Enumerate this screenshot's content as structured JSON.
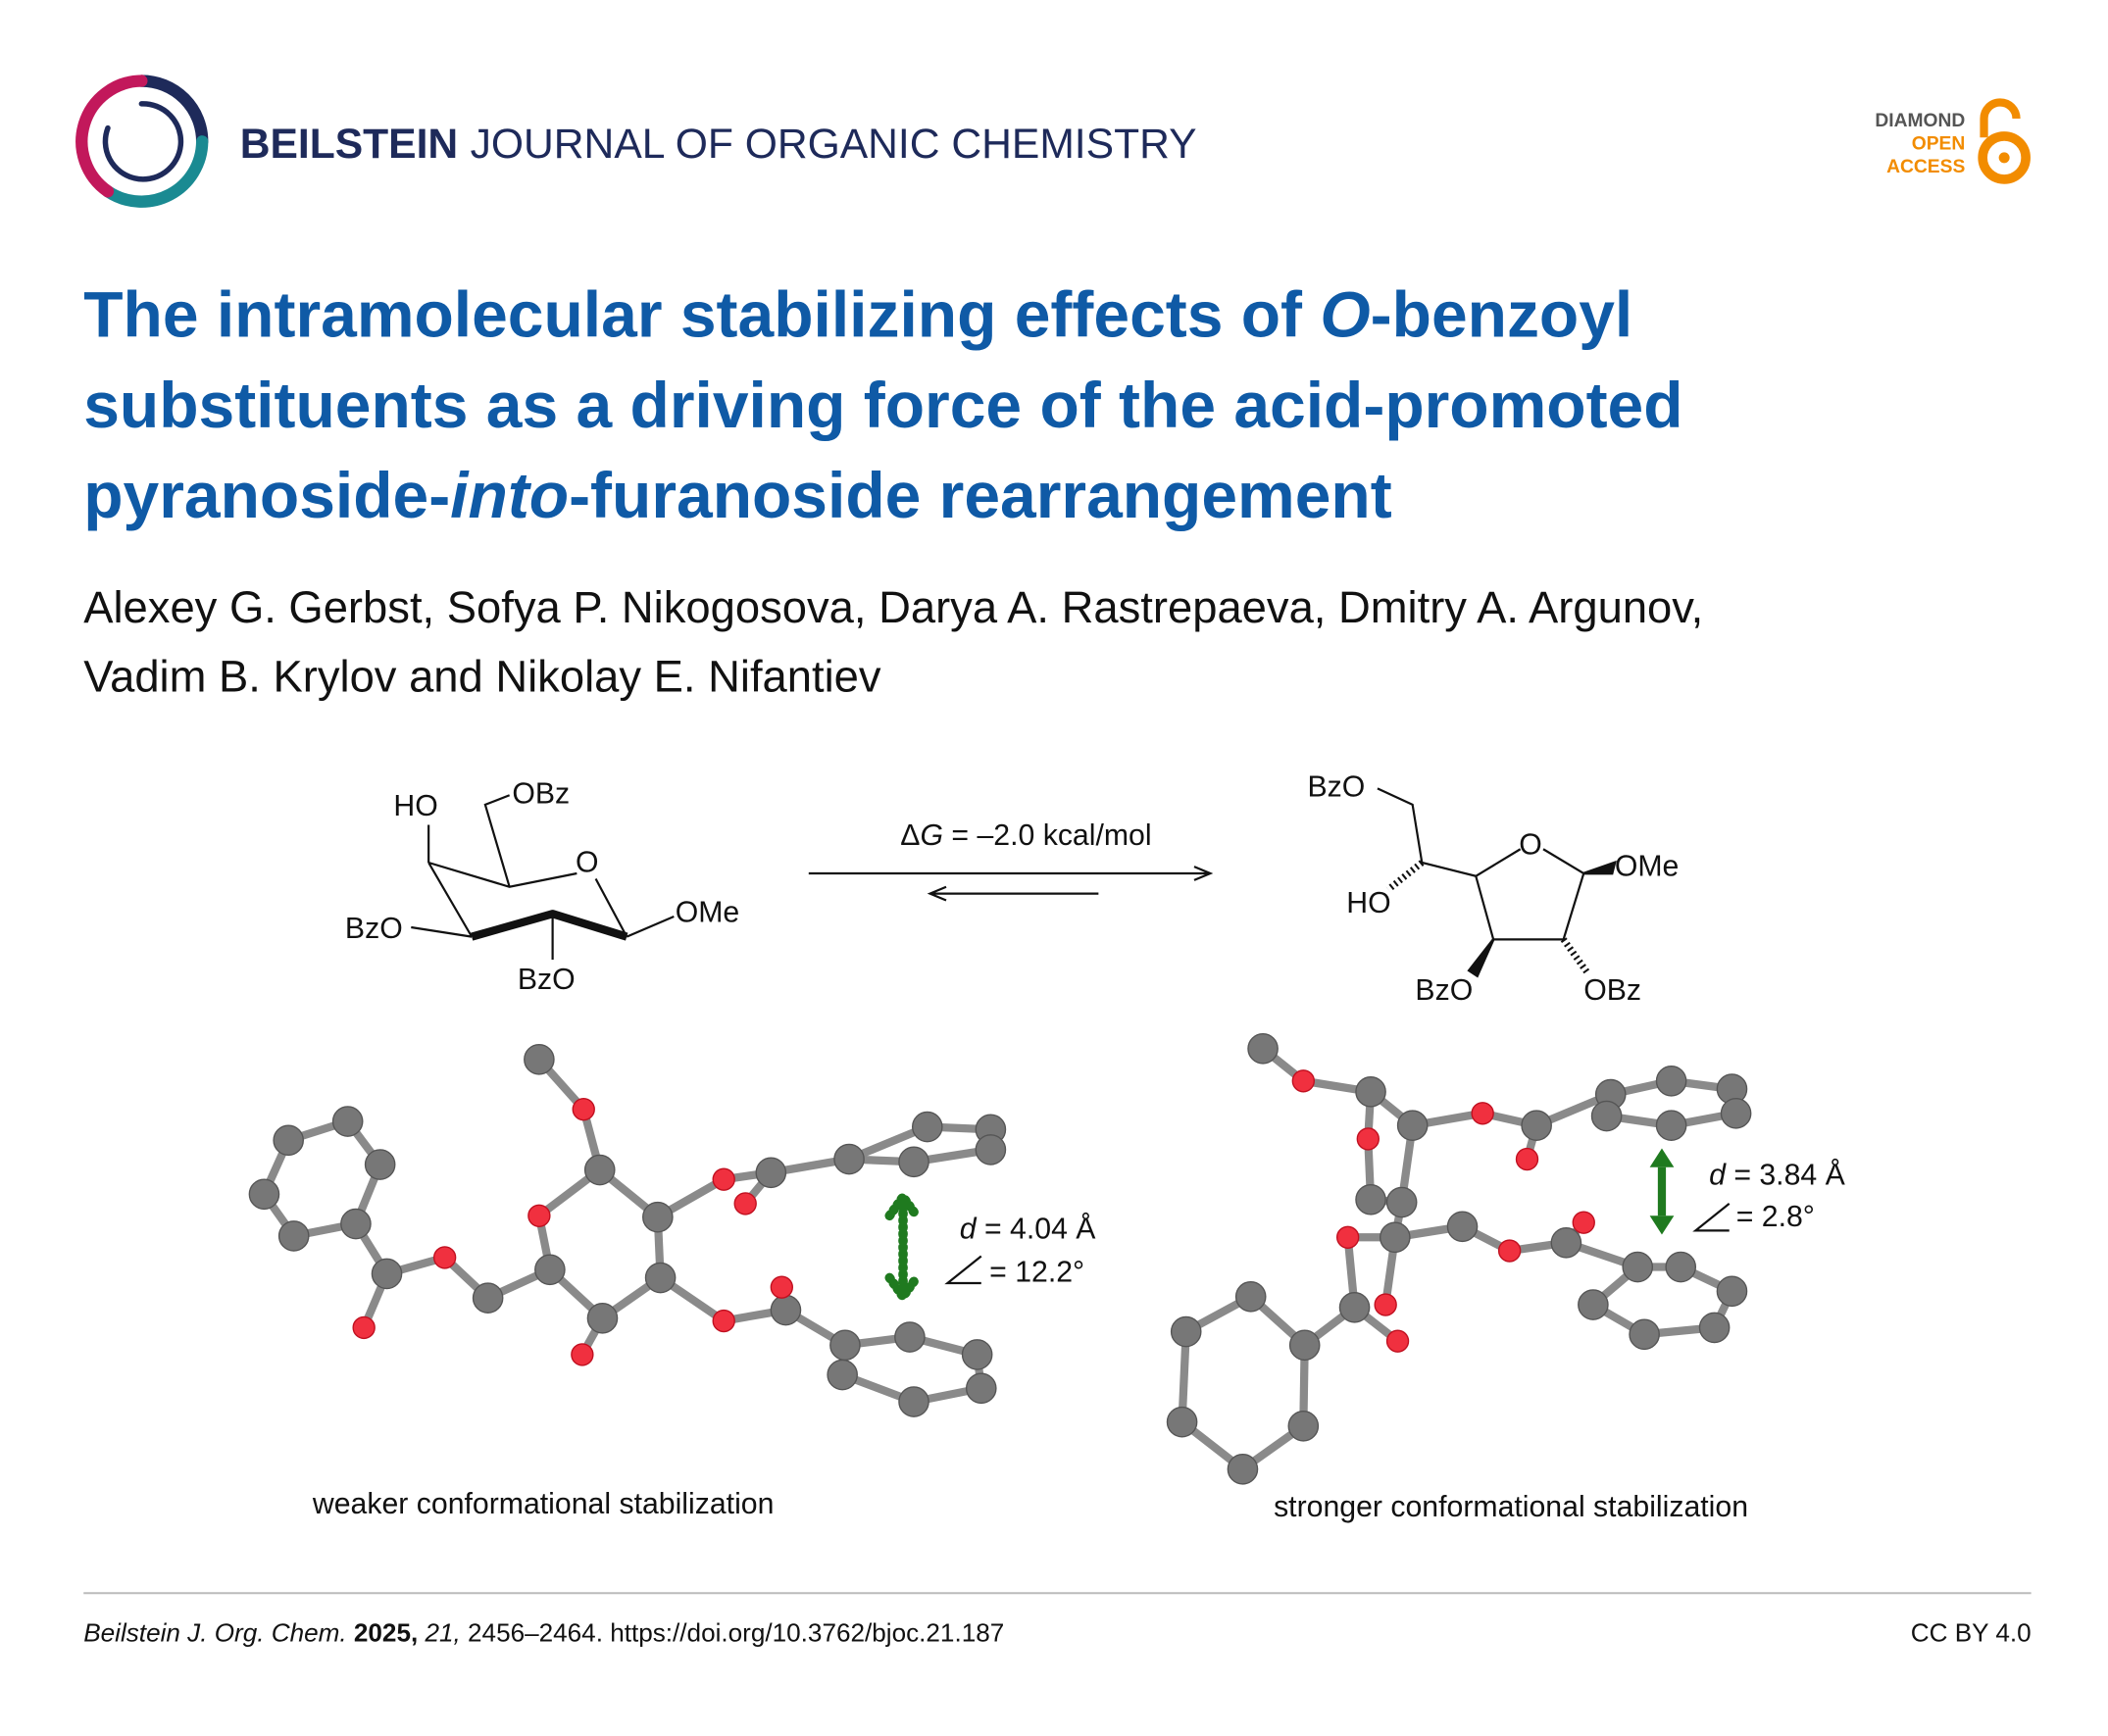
{
  "header": {
    "journal_name_bold": "BEILSTEIN",
    "journal_name_rest": "JOURNAL OF ORGANIC CHEMISTRY",
    "badge": [
      "DIAMOND",
      "OPEN",
      "ACCESS"
    ]
  },
  "title": {
    "lines": [
      [
        "The intramolecular stabilizing effects of ",
        "O",
        "-benzoyl"
      ],
      [
        "substituents as a driving force of the acid-promoted"
      ],
      [
        "pyranoside-",
        "into",
        "-furanoside rearrangement"
      ]
    ]
  },
  "authors": {
    "lines": [
      "Alexey G. Gerbst, Sofya P. Nikogosova, Darya A. Rastrepaeva, Dmitry A. Argunov,",
      "Vadim B. Krylov and Nikolay E. Nifantiev"
    ]
  },
  "scheme": {
    "pyranoside_labels": [
      "HO",
      "OBz",
      "O",
      "BzO",
      "OMe",
      "BzO"
    ],
    "equilibrium": [
      "Δ",
      "G",
      " = –2.0 kcal/mol"
    ],
    "furanoside_labels": [
      "BzO",
      "O",
      "OMe",
      "HO",
      "BzO",
      "OBz"
    ]
  },
  "models": [
    {
      "distance": [
        "d",
        " = 4.04 Å"
      ],
      "angle": " = 12.2°",
      "caption": "weaker conformational stabilization"
    },
    {
      "distance": [
        "d",
        " = 3.84 Å"
      ],
      "angle": " = 2.8°",
      "caption": "stronger conformational stabilization"
    }
  ],
  "footer": {
    "citation": [
      "Beilstein J. Org. Chem.",
      " 2025,",
      " 21,",
      " 2456–2464. https://doi.org/10.3762/bjoc.21.187"
    ],
    "license": "CC BY 4.0"
  }
}
